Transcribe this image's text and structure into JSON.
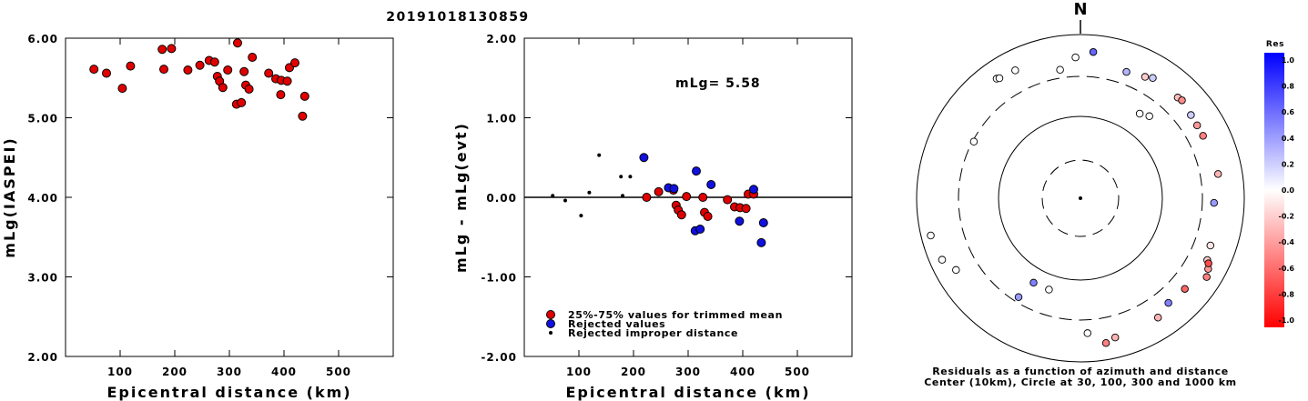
{
  "title": "20191018130859",
  "colors": {
    "trimmed": "#e00000",
    "rejected": "#1010e0",
    "improper": "#000000"
  },
  "chart_data": [
    {
      "type": "scatter",
      "xlabel": "Epicentral distance (km)",
      "ylabel": "mLg(IASPEI)",
      "xlim": [
        0,
        600
      ],
      "ylim": [
        2.0,
        6.0
      ],
      "xticks": [
        "100",
        "200",
        "300",
        "400",
        "500"
      ],
      "yticks": [
        "2.00",
        "3.00",
        "4.00",
        "5.00",
        "6.00"
      ],
      "series": [
        {
          "marker": "red-circle",
          "points": [
            [
              52,
              5.61
            ],
            [
              75,
              5.56
            ],
            [
              104,
              5.37
            ],
            [
              119,
              5.65
            ],
            [
              177,
              5.86
            ],
            [
              180,
              5.61
            ],
            [
              194,
              5.87
            ],
            [
              224,
              5.6
            ],
            [
              246,
              5.66
            ],
            [
              263,
              5.72
            ],
            [
              273,
              5.7
            ],
            [
              278,
              5.52
            ],
            [
              282,
              5.46
            ],
            [
              288,
              5.38
            ],
            [
              297,
              5.6
            ],
            [
              313,
              5.17
            ],
            [
              315,
              5.94
            ],
            [
              322,
              5.19
            ],
            [
              327,
              5.58
            ],
            [
              330,
              5.41
            ],
            [
              336,
              5.36
            ],
            [
              342,
              5.76
            ],
            [
              372,
              5.56
            ],
            [
              385,
              5.49
            ],
            [
              394,
              5.29
            ],
            [
              395,
              5.47
            ],
            [
              406,
              5.46
            ],
            [
              410,
              5.63
            ],
            [
              420,
              5.69
            ],
            [
              434,
              5.02
            ],
            [
              438,
              5.27
            ]
          ]
        }
      ]
    },
    {
      "type": "scatter",
      "xlabel": "Epicentral distance (km)",
      "ylabel": "mLg - mLg(evt)",
      "xlim": [
        0,
        600
      ],
      "ylim": [
        -2.0,
        2.0
      ],
      "xticks": [
        "100",
        "200",
        "300",
        "400",
        "500"
      ],
      "yticks": [
        "-2.00",
        "-1.00",
        "0.00",
        "1.00",
        "2.00"
      ],
      "annotation": "mLg= 5.58",
      "series": [
        {
          "name": "25%-75% values for trimmed mean",
          "marker": "red-circle",
          "points": [
            [
              224,
              0.0
            ],
            [
              246,
              0.07
            ],
            [
              273,
              0.09
            ],
            [
              278,
              -0.1
            ],
            [
              282,
              -0.16
            ],
            [
              288,
              -0.22
            ],
            [
              297,
              0.01
            ],
            [
              327,
              0.0
            ],
            [
              330,
              -0.19
            ],
            [
              336,
              -0.24
            ],
            [
              372,
              -0.03
            ],
            [
              385,
              -0.12
            ],
            [
              395,
              -0.13
            ],
            [
              406,
              -0.14
            ],
            [
              410,
              0.04
            ],
            [
              420,
              0.04
            ]
          ]
        },
        {
          "name": "Rejected values",
          "marker": "blue-circle",
          "points": [
            [
              219,
              0.5
            ],
            [
              264,
              0.12
            ],
            [
              274,
              0.11
            ],
            [
              313,
              -0.42
            ],
            [
              315,
              0.33
            ],
            [
              322,
              -0.4
            ],
            [
              342,
              0.16
            ],
            [
              394,
              -0.3
            ],
            [
              420,
              0.1
            ],
            [
              434,
              -0.57
            ],
            [
              438,
              -0.32
            ]
          ]
        },
        {
          "name": "Rejected improper distance",
          "marker": "black-dot",
          "points": [
            [
              52,
              0.02
            ],
            [
              75,
              -0.04
            ],
            [
              104,
              -0.23
            ],
            [
              119,
              0.06
            ],
            [
              137,
              0.53
            ],
            [
              177,
              0.26
            ],
            [
              180,
              0.02
            ],
            [
              194,
              0.26
            ]
          ]
        }
      ]
    },
    {
      "type": "polar-scatter",
      "north_label": "N",
      "caption_line1": "Residuals as a function of azimuth and distance",
      "caption_line2": "Center (10km), Circle at 30, 100, 300 and 1000 km",
      "rings_km": [
        30,
        100,
        300,
        1000
      ],
      "colorbar": {
        "title": "Res",
        "labels": [
          "1.0",
          "0.8",
          "0.6",
          "0.4",
          "0.2",
          "0.0",
          "-0.2",
          "-0.4",
          "-0.6",
          "-0.8",
          "-1.0"
        ]
      },
      "points_az_deg_res": [
        [
          5,
          0.6
        ],
        [
          20,
          0.3
        ],
        [
          28,
          -0.2
        ],
        [
          44,
          -0.25
        ],
        [
          46,
          -0.45
        ],
        [
          53,
          0.2
        ],
        [
          40,
          0.0
        ],
        [
          35,
          0.0
        ],
        [
          31,
          0.2
        ],
        [
          58,
          -0.4
        ],
        [
          63,
          -0.5
        ],
        [
          80,
          -0.3
        ],
        [
          92,
          0.4
        ],
        [
          110,
          -0.1
        ],
        [
          116,
          -0.2
        ],
        [
          119,
          -0.4
        ],
        [
          117,
          -0.7
        ],
        [
          122,
          -0.5
        ],
        [
          131,
          -0.6
        ],
        [
          140,
          0.5
        ],
        [
          147,
          -0.3
        ],
        [
          170,
          -0.5
        ],
        [
          166,
          -0.3
        ],
        [
          177,
          0.0
        ],
        [
          199,
          0.0
        ],
        [
          209,
          0.5
        ],
        [
          212,
          0.4
        ],
        [
          240,
          0.0
        ],
        [
          246,
          0.0
        ],
        [
          256,
          0.0
        ],
        [
          298,
          0.0
        ],
        [
          325,
          0.0
        ],
        [
          326,
          0.0
        ],
        [
          351,
          0.0
        ],
        [
          358,
          0.0
        ],
        [
          333,
          0.0
        ]
      ]
    }
  ]
}
